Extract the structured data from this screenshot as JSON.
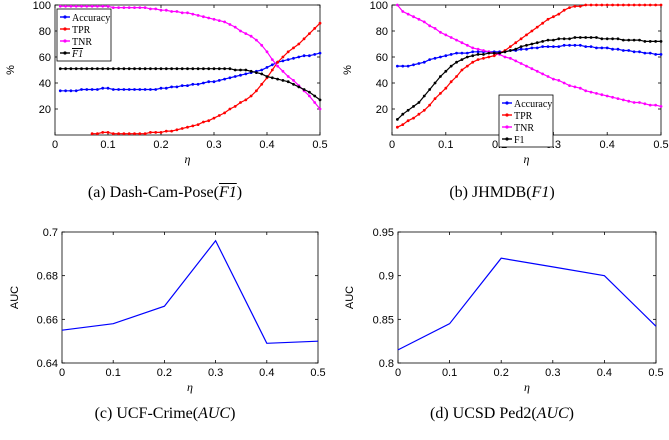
{
  "captions": {
    "a": {
      "prefix": "(a)  Dash-Cam-Pose(",
      "metric": "F1",
      "suffix": ")"
    },
    "b": {
      "prefix": "(b)  JHMDB(",
      "metric": "F1",
      "suffix": ")"
    },
    "c": {
      "prefix": "(c)  UCF-Crime(",
      "metric": "AUC",
      "suffix": ")"
    },
    "d": {
      "prefix": "(d)  UCSD Ped2(",
      "metric": "AUC",
      "suffix": ")"
    }
  },
  "chart_data": [
    {
      "id": "a",
      "type": "line",
      "xlabel": "η",
      "ylabel": "%",
      "xlim": [
        0,
        0.5
      ],
      "ylim": [
        0,
        100
      ],
      "xticks": [
        "0",
        "0.1",
        "0.2",
        "0.3",
        "0.4",
        "0.5"
      ],
      "yticks": [
        "20",
        "40",
        "60",
        "80",
        "100"
      ],
      "ytick_values": [
        20,
        40,
        60,
        80,
        100
      ],
      "legend_position": "top-left",
      "x": [
        0.01,
        0.02,
        0.03,
        0.04,
        0.05,
        0.06,
        0.07,
        0.08,
        0.09,
        0.1,
        0.11,
        0.12,
        0.13,
        0.14,
        0.15,
        0.16,
        0.17,
        0.18,
        0.19,
        0.2,
        0.21,
        0.22,
        0.23,
        0.24,
        0.25,
        0.26,
        0.27,
        0.28,
        0.29,
        0.3,
        0.31,
        0.32,
        0.33,
        0.34,
        0.35,
        0.36,
        0.37,
        0.38,
        0.39,
        0.4,
        0.41,
        0.42,
        0.43,
        0.44,
        0.45,
        0.46,
        0.47,
        0.48,
        0.49,
        0.5
      ],
      "series": [
        {
          "name": "Accuracy",
          "color": "#0000ff",
          "overline": false,
          "values": [
            34,
            34,
            34,
            34,
            35,
            35,
            35,
            35,
            36,
            36,
            35,
            35,
            35,
            35,
            35,
            35,
            35,
            35,
            35,
            36,
            36,
            37,
            37,
            38,
            38,
            39,
            39,
            40,
            41,
            41,
            42,
            43,
            44,
            45,
            46,
            47,
            48,
            49,
            50,
            52,
            54,
            56,
            57,
            58,
            59,
            60,
            61,
            61,
            62,
            63
          ]
        },
        {
          "name": "TPR",
          "color": "#ff0000",
          "overline": false,
          "values": [
            null,
            null,
            null,
            null,
            null,
            null,
            1,
            1,
            2,
            2,
            1,
            1,
            1,
            1,
            1,
            1,
            1,
            2,
            2,
            2,
            3,
            3,
            4,
            5,
            6,
            7,
            8,
            10,
            11,
            13,
            15,
            17,
            20,
            22,
            25,
            27,
            30,
            34,
            39,
            44,
            50,
            56,
            60,
            64,
            67,
            70,
            74,
            78,
            82,
            86
          ]
        },
        {
          "name": "TNR",
          "color": "#ff00ff",
          "overline": false,
          "values": [
            99,
            99,
            99,
            99,
            99,
            99,
            99,
            99,
            99,
            99,
            98,
            98,
            98,
            98,
            98,
            98,
            98,
            97,
            97,
            96,
            96,
            95,
            95,
            94,
            94,
            93,
            92,
            91,
            90,
            89,
            88,
            87,
            85,
            83,
            80,
            78,
            76,
            73,
            69,
            64,
            58,
            53,
            49,
            45,
            42,
            38,
            34,
            30,
            25,
            20
          ]
        },
        {
          "name": "F1",
          "color": "#000000",
          "overline": true,
          "values": [
            51,
            51,
            51,
            51,
            51,
            51,
            51,
            51,
            51,
            51,
            51,
            51,
            51,
            51,
            51,
            51,
            51,
            51,
            51,
            51,
            51,
            51,
            51,
            51,
            51,
            51,
            51,
            51,
            51,
            51,
            51,
            51,
            51,
            50,
            50,
            50,
            49,
            48,
            47,
            45,
            44,
            43,
            42,
            41,
            39,
            37,
            35,
            33,
            30,
            27
          ]
        }
      ]
    },
    {
      "id": "b",
      "type": "line",
      "xlabel": "η",
      "ylabel": "%",
      "xlim": [
        0,
        0.5
      ],
      "ylim": [
        0,
        100
      ],
      "xticks": [
        "0",
        "0.1",
        "0.2",
        "0.3",
        "0.4",
        "0.5"
      ],
      "yticks": [
        "20",
        "40",
        "60",
        "80",
        "100"
      ],
      "ytick_values": [
        20,
        40,
        60,
        80,
        100
      ],
      "legend_position": "bottom-center",
      "x": [
        0.01,
        0.02,
        0.03,
        0.04,
        0.05,
        0.06,
        0.07,
        0.08,
        0.09,
        0.1,
        0.11,
        0.12,
        0.13,
        0.14,
        0.15,
        0.16,
        0.17,
        0.18,
        0.19,
        0.2,
        0.21,
        0.22,
        0.23,
        0.24,
        0.25,
        0.26,
        0.27,
        0.28,
        0.29,
        0.3,
        0.31,
        0.32,
        0.33,
        0.34,
        0.35,
        0.36,
        0.37,
        0.38,
        0.39,
        0.4,
        0.41,
        0.42,
        0.43,
        0.44,
        0.45,
        0.46,
        0.47,
        0.48,
        0.49,
        0.5
      ],
      "series": [
        {
          "name": "Accuracy",
          "color": "#0000ff",
          "overline": false,
          "values": [
            53,
            53,
            53,
            54,
            55,
            56,
            58,
            59,
            60,
            61,
            62,
            63,
            63,
            63,
            64,
            64,
            64,
            64,
            64,
            64,
            64,
            65,
            65,
            66,
            66,
            67,
            67,
            68,
            68,
            68,
            68,
            69,
            69,
            69,
            69,
            68,
            68,
            67,
            67,
            67,
            66,
            66,
            65,
            65,
            64,
            64,
            63,
            63,
            62,
            62
          ]
        },
        {
          "name": "TPR",
          "color": "#ff0000",
          "overline": false,
          "values": [
            6,
            8,
            11,
            13,
            16,
            19,
            23,
            28,
            32,
            36,
            41,
            45,
            50,
            53,
            56,
            58,
            59,
            60,
            61,
            63,
            65,
            68,
            71,
            74,
            77,
            80,
            83,
            86,
            89,
            91,
            93,
            96,
            98,
            99,
            99,
            100,
            100,
            100,
            100,
            100,
            100,
            100,
            100,
            100,
            100,
            100,
            100,
            100,
            100,
            100
          ]
        },
        {
          "name": "TNR",
          "color": "#ff00ff",
          "overline": false,
          "values": [
            100,
            95,
            93,
            91,
            89,
            87,
            84,
            82,
            79,
            77,
            75,
            73,
            71,
            69,
            67,
            66,
            65,
            64,
            63,
            62,
            60,
            59,
            57,
            55,
            53,
            51,
            49,
            47,
            45,
            43,
            42,
            40,
            38,
            37,
            36,
            34,
            33,
            32,
            31,
            30,
            29,
            28,
            27,
            26,
            25,
            25,
            24,
            23,
            23,
            22
          ]
        },
        {
          "name": "F1",
          "color": "#000000",
          "overline": false,
          "values": [
            12,
            16,
            19,
            22,
            25,
            30,
            35,
            40,
            45,
            49,
            53,
            56,
            58,
            60,
            61,
            62,
            62,
            63,
            63,
            63,
            64,
            65,
            66,
            68,
            69,
            70,
            71,
            72,
            73,
            73,
            74,
            74,
            74,
            75,
            75,
            75,
            75,
            75,
            74,
            74,
            74,
            74,
            73,
            73,
            73,
            73,
            72,
            72,
            72,
            72
          ]
        }
      ]
    },
    {
      "id": "c",
      "type": "line",
      "xlabel": "η",
      "ylabel": "AUC",
      "xlim": [
        0,
        0.5
      ],
      "ylim": [
        0.64,
        0.7
      ],
      "xticks": [
        "0",
        "0.1",
        "0.2",
        "0.3",
        "0.4",
        "0.5"
      ],
      "yticks": [
        "0.64",
        "0.66",
        "0.68",
        "0.7"
      ],
      "ytick_values": [
        0.64,
        0.66,
        0.68,
        0.7
      ],
      "x": [
        0,
        0.1,
        0.2,
        0.3,
        0.4,
        0.5
      ],
      "series": [
        {
          "color": "#0000ff",
          "values": [
            0.655,
            0.658,
            0.666,
            0.696,
            0.649,
            0.65
          ]
        }
      ]
    },
    {
      "id": "d",
      "type": "line",
      "xlabel": "η",
      "ylabel": "AUC",
      "xlim": [
        0,
        0.5
      ],
      "ylim": [
        0.8,
        0.95
      ],
      "xticks": [
        "0",
        "0.1",
        "0.2",
        "0.3",
        "0.4",
        "0.5"
      ],
      "yticks": [
        "0.8",
        "0.85",
        "0.9",
        "0.95"
      ],
      "ytick_values": [
        0.8,
        0.85,
        0.9,
        0.95
      ],
      "x": [
        0,
        0.1,
        0.2,
        0.3,
        0.4,
        0.5
      ],
      "series": [
        {
          "color": "#0000ff",
          "values": [
            0.815,
            0.845,
            0.92,
            0.91,
            0.9,
            0.842
          ]
        }
      ]
    }
  ]
}
